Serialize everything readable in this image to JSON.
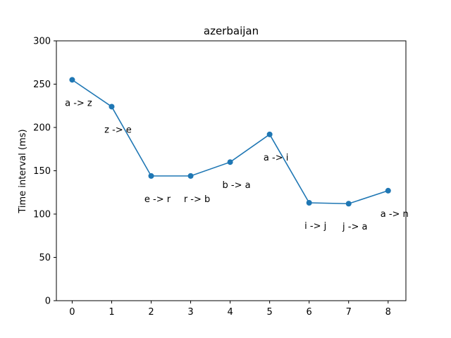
{
  "chart_data": {
    "type": "line",
    "title": "azerbaijan",
    "xlabel": "",
    "ylabel": "Time interval (ms)",
    "x": [
      0,
      1,
      2,
      3,
      4,
      5,
      6,
      7,
      8
    ],
    "values": [
      255,
      224,
      144,
      144,
      160,
      192,
      113,
      112,
      127
    ],
    "point_labels": [
      "a -> z",
      "z -> e",
      "e -> r",
      "r -> b",
      "b -> a",
      "a -> i",
      "i -> j",
      "j -> a",
      "a -> n"
    ],
    "xlim": [
      -0.4,
      8.45
    ],
    "ylim": [
      0,
      300
    ],
    "xticks": [
      0,
      1,
      2,
      3,
      4,
      5,
      6,
      7,
      8
    ],
    "yticks": [
      0,
      50,
      100,
      150,
      200,
      250,
      300
    ],
    "grid": false,
    "color": "#1f77b4"
  }
}
